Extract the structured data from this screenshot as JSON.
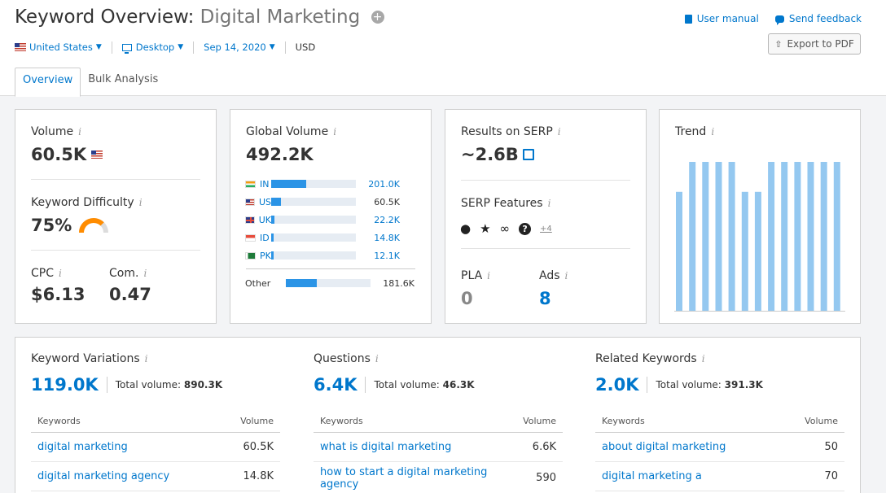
{
  "header": {
    "title_prefix": "Keyword Overview:",
    "keyword": "Digital Marketing",
    "plus": "+",
    "filters": {
      "database": "United States",
      "device": "Desktop",
      "date": "Sep 14, 2020",
      "currency": "USD"
    },
    "user_manual": "User manual",
    "send_feedback": "Send feedback",
    "export": "Export to PDF"
  },
  "tabs": [
    {
      "label": "Overview",
      "active": true
    },
    {
      "label": "Bulk Analysis",
      "active": false
    }
  ],
  "volume": {
    "label": "Volume",
    "info": "i",
    "value": "60.5K",
    "kd_label": "Keyword Difficulty",
    "kd_value": "75%",
    "kd_percent": 75,
    "cpc_label": "CPC",
    "cpc_value": "$6.13",
    "com_label": "Com.",
    "com_value": "0.47"
  },
  "global": {
    "label": "Global Volume",
    "value": "492.2K",
    "countries": [
      {
        "code": "IN",
        "value": "201.0K",
        "share": 0.41
      },
      {
        "code": "US",
        "value": "60.5K",
        "share": 0.12
      },
      {
        "code": "UK",
        "value": "22.2K",
        "share": 0.04
      },
      {
        "code": "ID",
        "value": "14.8K",
        "share": 0.03
      },
      {
        "code": "PK",
        "value": "12.1K",
        "share": 0.025
      }
    ],
    "other_label": "Other",
    "other_value": "181.6K",
    "other_share": 0.37
  },
  "serp": {
    "results_label": "Results on SERP",
    "results_value": "~2.6B",
    "features_label": "SERP Features",
    "features_icons": [
      "location-pin-icon",
      "star-icon",
      "link-icon",
      "question-icon"
    ],
    "features_more": "+4",
    "pla_label": "PLA",
    "pla_value": "0",
    "ads_label": "Ads",
    "ads_value": "8"
  },
  "trend": {
    "label": "Trend",
    "bars": [
      0.8,
      1,
      1,
      1,
      1,
      0.8,
      0.8,
      1,
      1,
      1,
      1,
      1,
      1
    ]
  },
  "sections": [
    {
      "title": "Keyword Variations",
      "count": "119.0K",
      "total_label": "Total volume:",
      "total_value": "890.3K",
      "col_kw": "Keywords",
      "col_vol": "Volume",
      "rows": [
        {
          "kw": "digital marketing",
          "vol": "60.5K"
        },
        {
          "kw": "digital marketing agency",
          "vol": "14.8K"
        }
      ]
    },
    {
      "title": "Questions",
      "count": "6.4K",
      "total_label": "Total volume:",
      "total_value": "46.3K",
      "col_kw": "Keywords",
      "col_vol": "Volume",
      "rows": [
        {
          "kw": "what is digital marketing",
          "vol": "6.6K"
        },
        {
          "kw": "how to start a digital marketing agency",
          "vol": "590"
        }
      ]
    },
    {
      "title": "Related Keywords",
      "count": "2.0K",
      "total_label": "Total volume:",
      "total_value": "391.3K",
      "col_kw": "Keywords",
      "col_vol": "Volume",
      "rows": [
        {
          "kw": "about digital marketing",
          "vol": "50"
        },
        {
          "kw": "digital marketing a",
          "vol": "70"
        }
      ]
    }
  ],
  "colors": {
    "accent": "#0077cc",
    "bar": "#2b94e6",
    "trend": "#94c8f0",
    "kd": "#ff8c00"
  }
}
